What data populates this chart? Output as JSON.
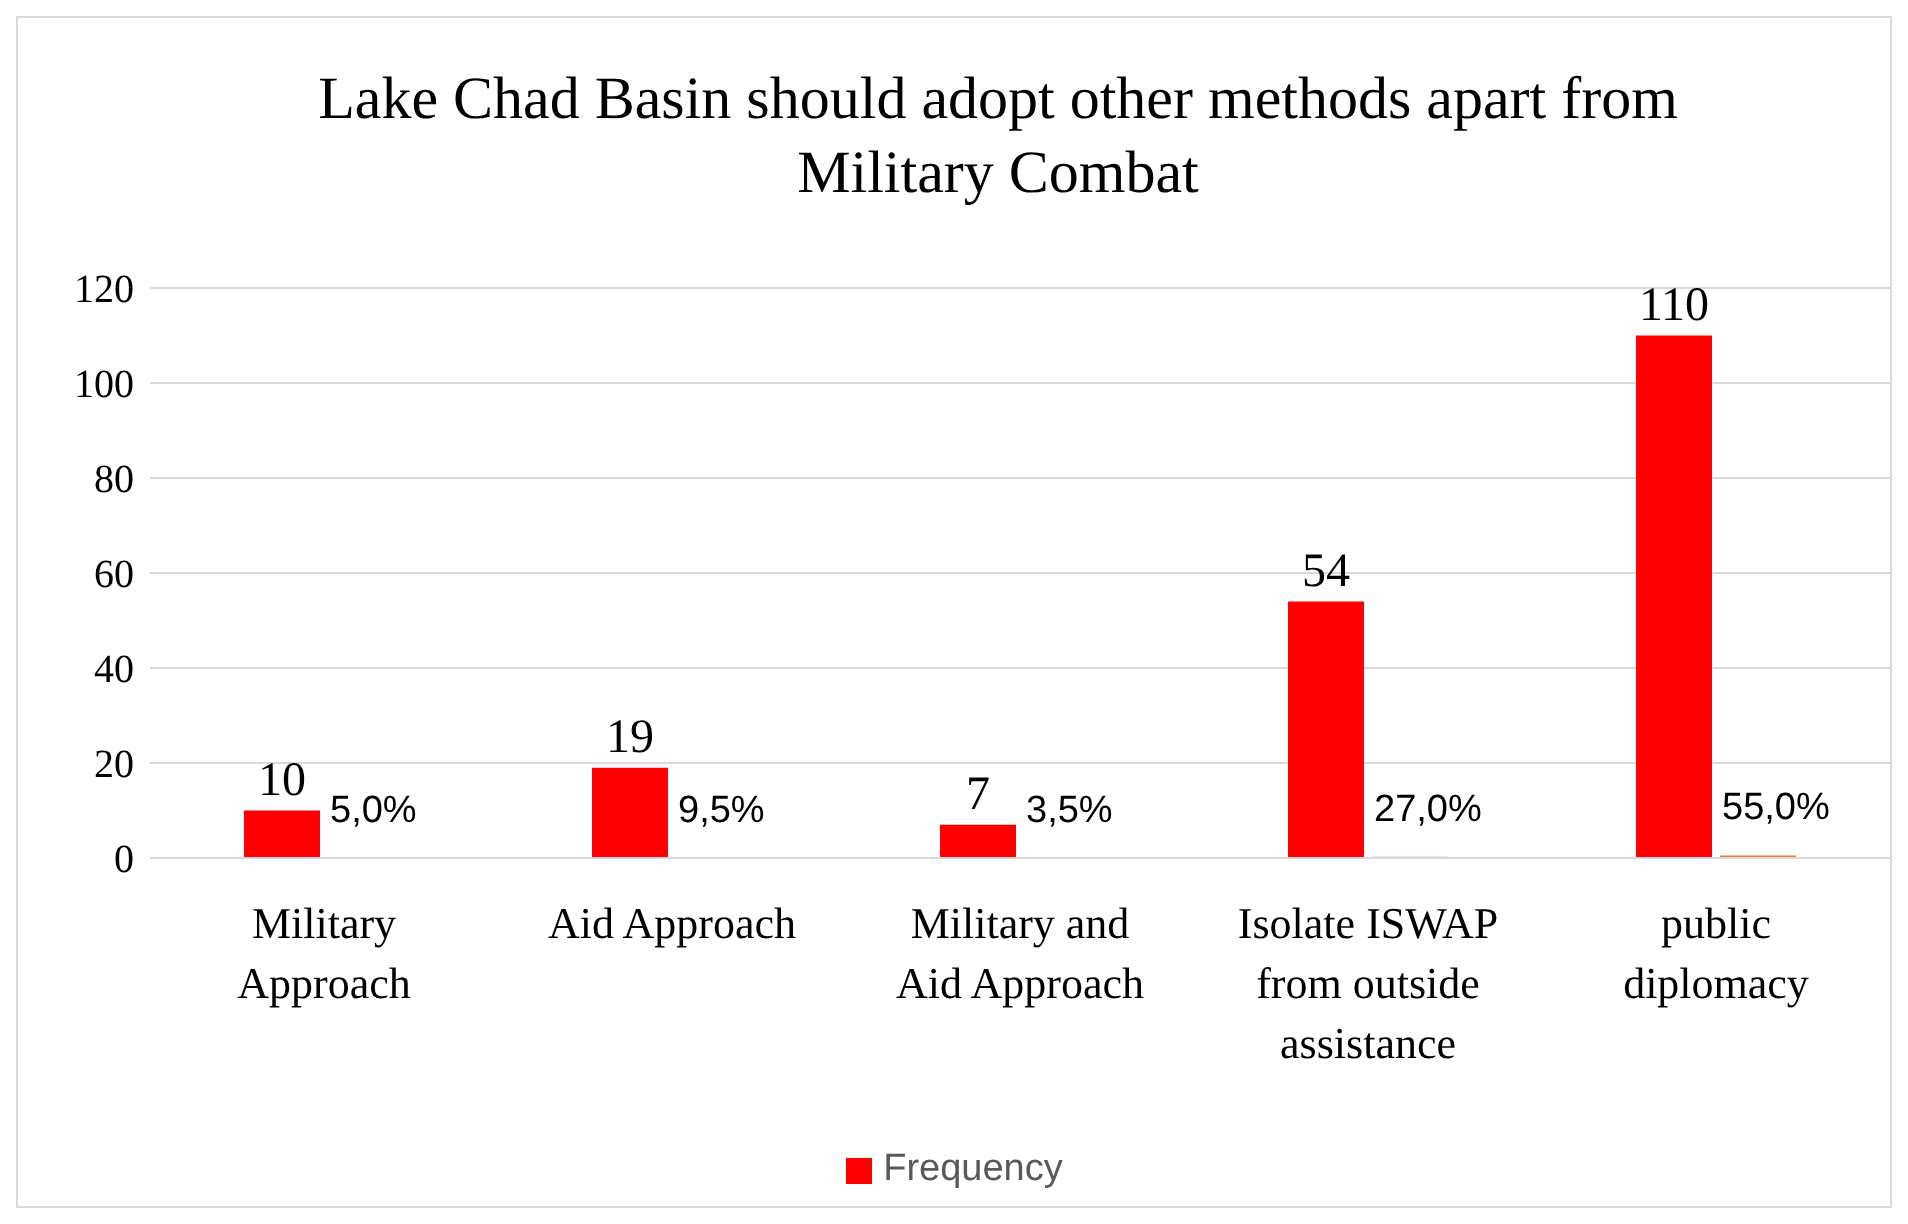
{
  "chart_data": {
    "type": "bar",
    "title": "Lake Chad Basin should adopt other methods apart from Military Combat",
    "categories": [
      "Military Approach",
      "Aid Approach",
      "Military and Aid Approach",
      "Isolate ISWAP from outside assistance",
      "public diplomacy"
    ],
    "series": [
      {
        "name": "Frequency",
        "color": "#ff0000",
        "values": [
          10,
          19,
          7,
          54,
          110
        ],
        "value_labels": [
          "10",
          "19",
          "7",
          "54",
          "110"
        ]
      },
      {
        "color": "#ed7d31",
        "values": [
          0.05,
          0.095,
          0.035,
          0.27,
          0.55
        ],
        "value_labels": [
          "5,0%",
          "9,5%",
          "3,5%",
          "27,0%",
          "55,0%"
        ]
      }
    ],
    "ylim": [
      0,
      120
    ],
    "yticks": [
      0,
      20,
      40,
      60,
      80,
      100,
      120
    ],
    "grid": "y",
    "legend": "bottom"
  }
}
